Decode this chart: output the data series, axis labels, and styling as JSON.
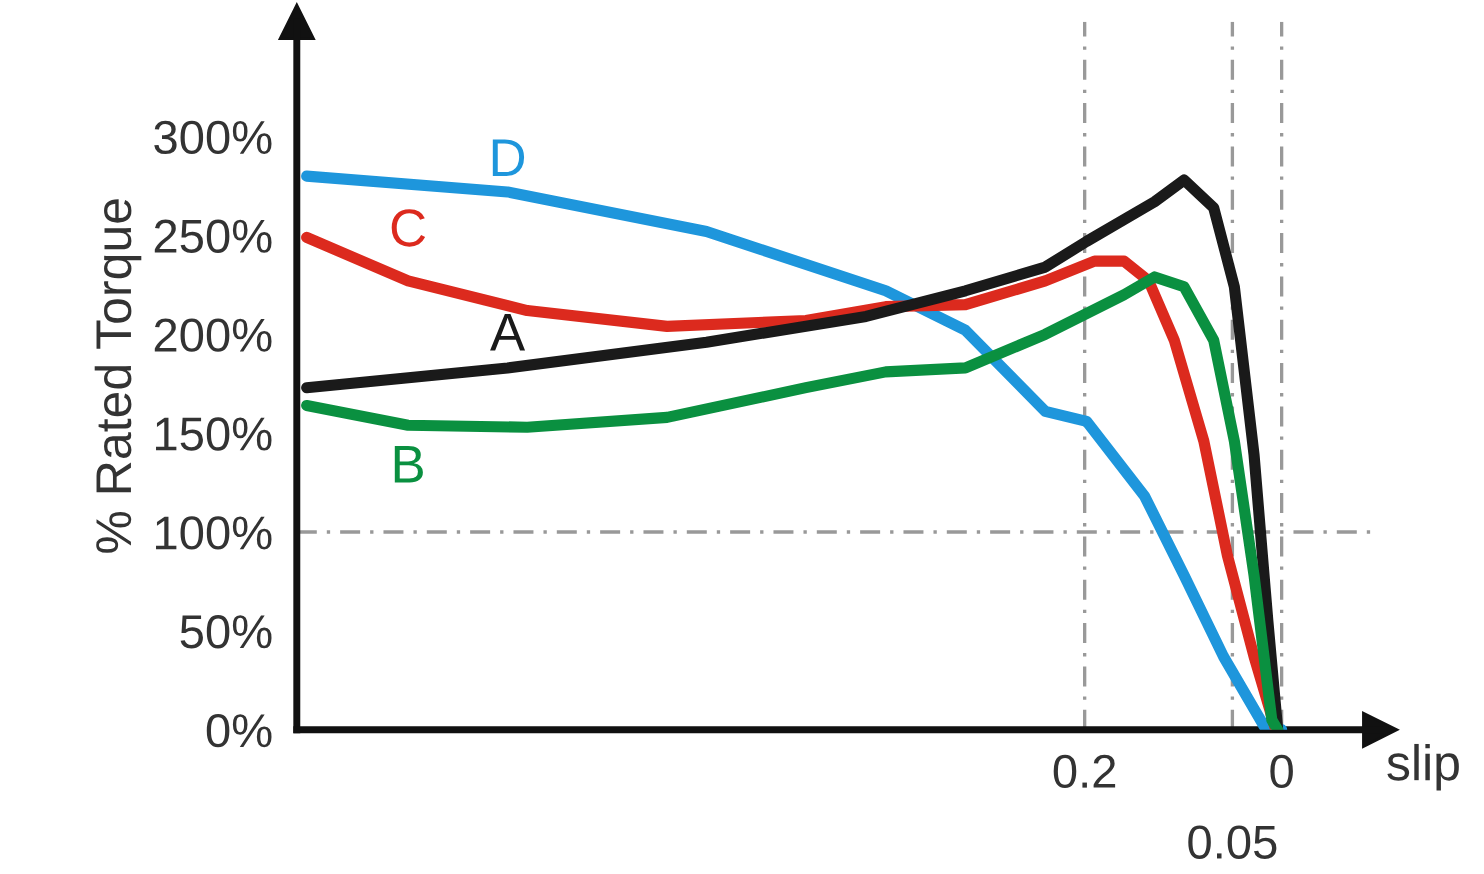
{
  "chart_data": {
    "type": "line",
    "ylabel": "% Rated Torque",
    "xlabel": "slip",
    "xlim": [
      1.0,
      -0.1
    ],
    "xticks": [
      0.2,
      0
    ],
    "ylim": [
      0,
      358
    ],
    "yticks": [
      {
        "value": 0,
        "label": "0%"
      },
      {
        "value": 50,
        "label": "50%"
      },
      {
        "value": 100,
        "label": "100%"
      },
      {
        "value": 150,
        "label": "150%"
      },
      {
        "value": 200,
        "label": "200%"
      },
      {
        "value": 250,
        "label": "250%"
      },
      {
        "value": 300,
        "label": "300%"
      }
    ],
    "grid": false,
    "legend": false,
    "marker": "none",
    "line_style": "solid",
    "ref_lines": [
      {
        "axis": "y",
        "value": 100,
        "color": "#999999",
        "line_style": "dashed"
      },
      {
        "axis": "x",
        "value": 0.2,
        "color": "#999999",
        "line_style": "dashed"
      },
      {
        "axis": "x",
        "value": 0.05,
        "label": "0.05",
        "color": "#999999",
        "line_style": "dashed"
      },
      {
        "axis": "x",
        "value": 0,
        "color": "#999999",
        "line_style": "dashed"
      }
    ],
    "series": [
      {
        "name": "D",
        "color": "#1e96dc",
        "x": [
          0.99,
          0.786,
          0.584,
          0.402,
          0.321,
          0.24,
          0.198,
          0.139,
          0.099,
          0.059,
          0.018,
          0
        ],
        "values": [
          280,
          272,
          252,
          222,
          202,
          161,
          156,
          118,
          78,
          37,
          2,
          0
        ]
      },
      {
        "name": "C",
        "color": "#dc2a1e",
        "x": [
          0.99,
          0.887,
          0.766,
          0.624,
          0.483,
          0.402,
          0.321,
          0.24,
          0.19,
          0.16,
          0.135,
          0.109,
          0.079,
          0.055,
          0.028,
          0.006
        ],
        "values": [
          249,
          227,
          212,
          204,
          207,
          214,
          215,
          227,
          237,
          237,
          227,
          197,
          146,
          88,
          37,
          0
        ]
      },
      {
        "name": "A",
        "color": "#1a1a1a",
        "x": [
          0.99,
          0.786,
          0.584,
          0.422,
          0.321,
          0.24,
          0.198,
          0.129,
          0.099,
          0.069,
          0.048,
          0.028,
          0.014,
          0.004
        ],
        "values": [
          173,
          183,
          196,
          209,
          222,
          234,
          247,
          267,
          278,
          264,
          224,
          139,
          55,
          0
        ]
      },
      {
        "name": "B",
        "color": "#0a9040",
        "x": [
          0.99,
          0.887,
          0.766,
          0.624,
          0.483,
          0.402,
          0.321,
          0.24,
          0.16,
          0.129,
          0.099,
          0.069,
          0.048,
          0.028,
          0.01,
          0.004
        ],
        "values": [
          164,
          154,
          153,
          158,
          173,
          181,
          183,
          200,
          220,
          229,
          224,
          197,
          146,
          78,
          5,
          0
        ]
      }
    ]
  }
}
